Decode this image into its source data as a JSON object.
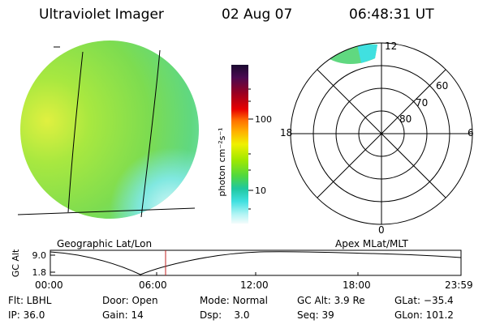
{
  "header": {
    "title": "Ultraviolet Imager",
    "date": "02 Aug 07",
    "time": "06:48:31 UT"
  },
  "colorbar": {
    "unit": "photon cm⁻²s⁻¹",
    "ticks": [
      "100",
      "10"
    ],
    "colors": [
      "#1a0a30",
      "#3a0a50",
      "#6a0a40",
      "#9a0020",
      "#c80010",
      "#e80000",
      "#ff5000",
      "#ff9000",
      "#ffc000",
      "#f0f000",
      "#c0f000",
      "#80e800",
      "#40d840",
      "#20c8a0",
      "#40e0e0",
      "#a0f0f0",
      "#e8fcfc"
    ]
  },
  "polar_plot": {
    "mlt_labels": {
      "top": "12",
      "bottom": "0",
      "left": "18",
      "right": "6"
    },
    "lat_labels": [
      "60",
      "70",
      "80"
    ]
  },
  "left_caption": "Geographic Lat/Lon",
  "right_caption": "Apex MLat/MLT",
  "altitude_plot": {
    "ylabel": "GC Alt",
    "ytick_top": "9.0",
    "ytick_bottom": "1.8",
    "x_ticks": [
      "00:00",
      "06:00",
      "12:00",
      "18:00",
      "23:59"
    ]
  },
  "status": {
    "row1": [
      "Flt: LBHL",
      "Door: Open",
      "Mode: Normal",
      "GC Alt: 3.9 Re",
      "GLat: −35.4"
    ],
    "row2": [
      "IP: 36.0",
      "Gain: 14",
      "Dsp:    3.0",
      "Seq: 39",
      "GLon: 101.2"
    ]
  }
}
